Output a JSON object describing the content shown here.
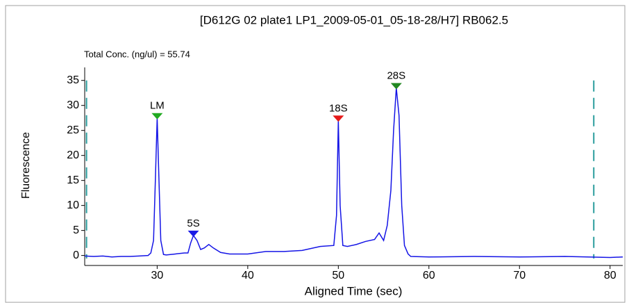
{
  "chart_data": {
    "type": "line",
    "title": "[D612G 02 plate1 LP1_2009-05-01_05-18-28/H7] RB062.5",
    "annotation": "Total Conc. (ng/ul) = 55.74",
    "x_label": "Aligned Time (sec)",
    "y_label": "Fluorescence",
    "color": "#1414e6",
    "xlim": [
      22,
      81.4
    ],
    "ylim": [
      -2,
      37.6
    ],
    "xticks": [
      30,
      40,
      50,
      60,
      70,
      80
    ],
    "yticks": [
      0,
      5,
      10,
      15,
      20,
      25,
      30,
      35
    ],
    "x": [
      22,
      23,
      24,
      25,
      26,
      27,
      28,
      29,
      29.3,
      29.6,
      29.8,
      30,
      30.2,
      30.4,
      30.7,
      31,
      32,
      33,
      33.4,
      33.7,
      34,
      34.4,
      34.8,
      35.2,
      35.7,
      36.2,
      37,
      38,
      40,
      42,
      44,
      46,
      48,
      49.5,
      49.8,
      50,
      50.2,
      50.5,
      51,
      52,
      53,
      54,
      54.5,
      55,
      55.4,
      55.8,
      56.1,
      56.4,
      56.7,
      57,
      57.3,
      57.7,
      58,
      60,
      65,
      70,
      75,
      80,
      81.4
    ],
    "values": [
      -0.1,
      -0.2,
      -0.1,
      -0.3,
      -0.2,
      -0.2,
      -0.1,
      0,
      0.5,
      3,
      15,
      27.5,
      15,
      3,
      0.2,
      0.1,
      0.3,
      0.5,
      0.5,
      2.5,
      4,
      3,
      1.2,
      1.5,
      2.2,
      1.5,
      0.6,
      0.3,
      0.3,
      0.8,
      0.8,
      1,
      1.8,
      2,
      8,
      27,
      10,
      2,
      1.8,
      2.2,
      2.8,
      3.2,
      4.5,
      3,
      6,
      13,
      25,
      33.5,
      28,
      10,
      2,
      0.3,
      -0.2,
      -0.3,
      -0.2,
      -0.3,
      -0.2,
      -0.4,
      -0.3
    ],
    "peaks": [
      {
        "label": "LM",
        "x": 30,
        "y": 27.5,
        "color": "#22aa22"
      },
      {
        "label": "5S",
        "x": 34,
        "y": 4,
        "color": "#1a1ae6"
      },
      {
        "label": "18S",
        "x": 50,
        "y": 27,
        "color": "#e61a1a"
      },
      {
        "label": "28S",
        "x": 56.4,
        "y": 33.5,
        "color": "#228822"
      }
    ],
    "markers": [
      22.2,
      78.2
    ],
    "marker_color": "#2a9d9d"
  }
}
